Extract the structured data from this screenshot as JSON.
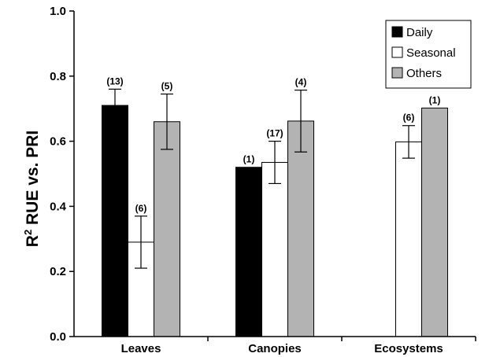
{
  "chart_data": {
    "type": "bar",
    "ylabel_parts": [
      "R",
      "2",
      " RUE vs. PRI"
    ],
    "xlabel": "",
    "ylim": [
      0,
      1.0
    ],
    "yticks": [
      "0.0",
      "0.2",
      "0.4",
      "0.6",
      "0.8",
      "1.0"
    ],
    "categories": [
      "Leaves",
      "Canopies",
      "Ecosystems"
    ],
    "legend_position": "top-right",
    "series": [
      {
        "name": "Daily",
        "color": "#000000",
        "values": [
          0.71,
          0.52,
          null
        ],
        "errors": [
          0.05,
          0.0,
          null
        ],
        "n_labels": [
          "(13)",
          "(1)",
          ""
        ]
      },
      {
        "name": "Seasonal",
        "color": "#ffffff",
        "values": [
          0.29,
          0.535,
          0.598
        ],
        "errors": [
          0.08,
          0.065,
          0.05
        ],
        "n_labels": [
          "(6)",
          "(17)",
          "(6)"
        ]
      },
      {
        "name": "Others",
        "color": "#b3b3b3",
        "values": [
          0.66,
          0.662,
          0.702
        ],
        "errors": [
          0.085,
          0.095,
          0.0
        ],
        "n_labels": [
          "(5)",
          "(4)",
          "(1)"
        ]
      }
    ]
  }
}
